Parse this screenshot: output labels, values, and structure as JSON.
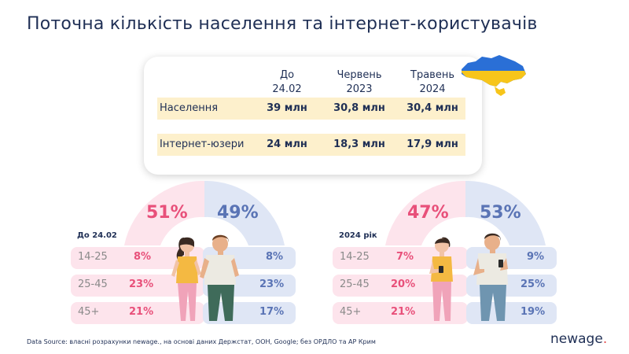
{
  "title": "Поточна кількість населення та інтернет-користувачів",
  "table": {
    "columns": [
      {
        "line1": "До",
        "line2": "24.02"
      },
      {
        "line1": "Червень",
        "line2": "2023"
      },
      {
        "line1": "Травень",
        "line2": "2024"
      }
    ],
    "rows": [
      {
        "label": "Населення",
        "values": [
          "39 млн",
          "30,8 млн",
          "30,4 млн"
        ]
      },
      {
        "label": "Інтернет-юзери",
        "values": [
          "24 млн",
          "18,3 млн",
          "17,9 млн"
        ]
      }
    ]
  },
  "left_panel": {
    "label": "До 24.02",
    "female_pct": "51%",
    "male_pct": "49%",
    "rows": [
      {
        "age": "14-25",
        "female": "8%",
        "male": "8%"
      },
      {
        "age": "25-45",
        "female": "23%",
        "male": "23%"
      },
      {
        "age": "45+",
        "female": "21%",
        "male": "17%"
      }
    ]
  },
  "right_panel": {
    "label": "2024 рік",
    "female_pct": "47%",
    "male_pct": "53%",
    "rows": [
      {
        "age": "14-25",
        "female": "7%",
        "male": "9%"
      },
      {
        "age": "25-45",
        "female": "20%",
        "male": "25%"
      },
      {
        "age": "45+",
        "female": "21%",
        "male": "19%"
      }
    ]
  },
  "footer": "Data Source: власні розрахунки newage., на основі даних Держстат, ООН, Google; без ОРДЛО та АР Крим",
  "brand": {
    "name": "newage",
    "dot": "."
  },
  "colors": {
    "text": "#1f2f55",
    "female": "#e8507a",
    "male": "#5a74b5",
    "female_bg": "#fde4ec",
    "male_bg": "#dfe6f5",
    "band": "#fdf0cc",
    "flag_blue": "#2a6fd6",
    "flag_yellow": "#f7c51a"
  },
  "icons": [
    "ukraine-map-icon",
    "woman-illustration",
    "man-illustration"
  ]
}
